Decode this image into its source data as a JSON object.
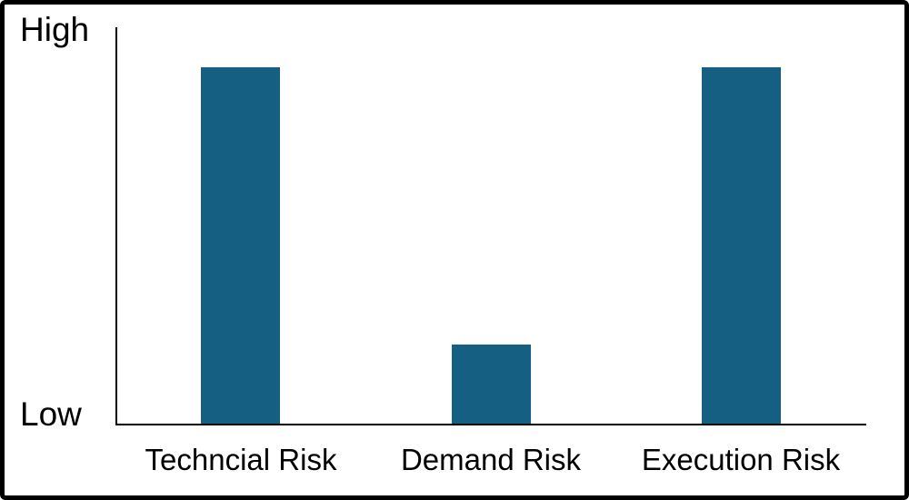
{
  "chart_data": {
    "type": "bar",
    "title": "",
    "categories": [
      "Techncial Risk",
      "Demand Risk",
      "Execution Risk"
    ],
    "values": [
      0.9,
      0.2,
      0.9
    ],
    "ylim": [
      0,
      1
    ],
    "y_tick_labels": [
      "High",
      "Low"
    ],
    "y_axis_note": "qualitative scale from Low (0) to High (1), no numeric ticks",
    "xlabel": "",
    "ylabel": "",
    "legend": "none",
    "grid": false,
    "bar_color": "#156082",
    "axis_color": "#000000",
    "text_color": "#000000",
    "frame_color": "#000000",
    "background_color": "#ffffff"
  }
}
